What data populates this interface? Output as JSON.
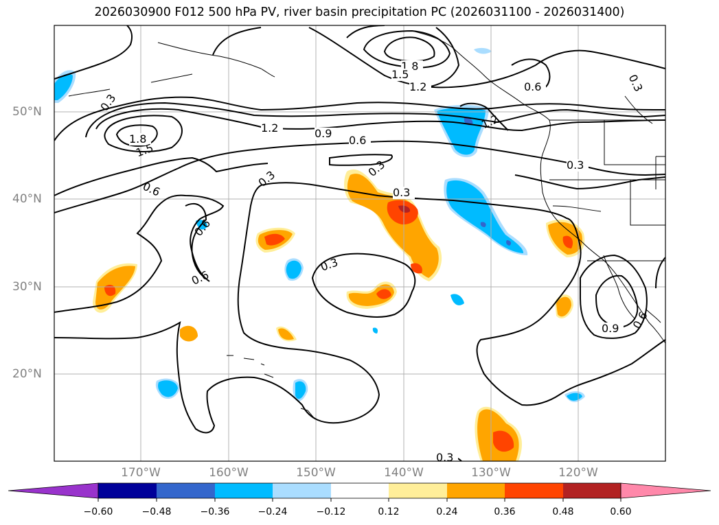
{
  "title": "2026030900 F012 500 hPa PV, river basin precipitation PC (2026031100 - 2026031400)",
  "lat_labels": [
    "50°N",
    "40°N",
    "30°N",
    "20°N"
  ],
  "lon_labels": [
    "170°W",
    "160°W",
    "150°W",
    "140°W",
    "130°W",
    "120°W"
  ],
  "colorbar": {
    "colors": [
      "#9933cc",
      "#000099",
      "#3366cc",
      "#00bbff",
      "#aaddff",
      "#ffffff",
      "#ffee99",
      "#ffa500",
      "#ff4400",
      "#b22222",
      "#ff88aa"
    ],
    "ticks": [
      "−0.60",
      "−0.48",
      "−0.36",
      "−0.24",
      "−0.12",
      "0.12",
      "0.24",
      "0.36",
      "0.48",
      "0.60"
    ]
  },
  "contour_labels": {
    "c1": "1.8",
    "c2": "1.5",
    "c3": "1.2",
    "c4": "0.6",
    "c5": "0.3",
    "c6": "1.8",
    "c7": "1.5",
    "c8": "1.2",
    "c9": "0.9",
    "c10": "0.6",
    "c11": "0.3",
    "c12": "1.2",
    "c13": "0.3",
    "c14": "0.3",
    "c15": "0.3",
    "c16": "0.6",
    "c17": "0.6",
    "c18": "0.6",
    "c19": "0.3",
    "c20": "0.9",
    "c21": "0.6",
    "c22": "0.3",
    "c23": "0.3"
  }
}
